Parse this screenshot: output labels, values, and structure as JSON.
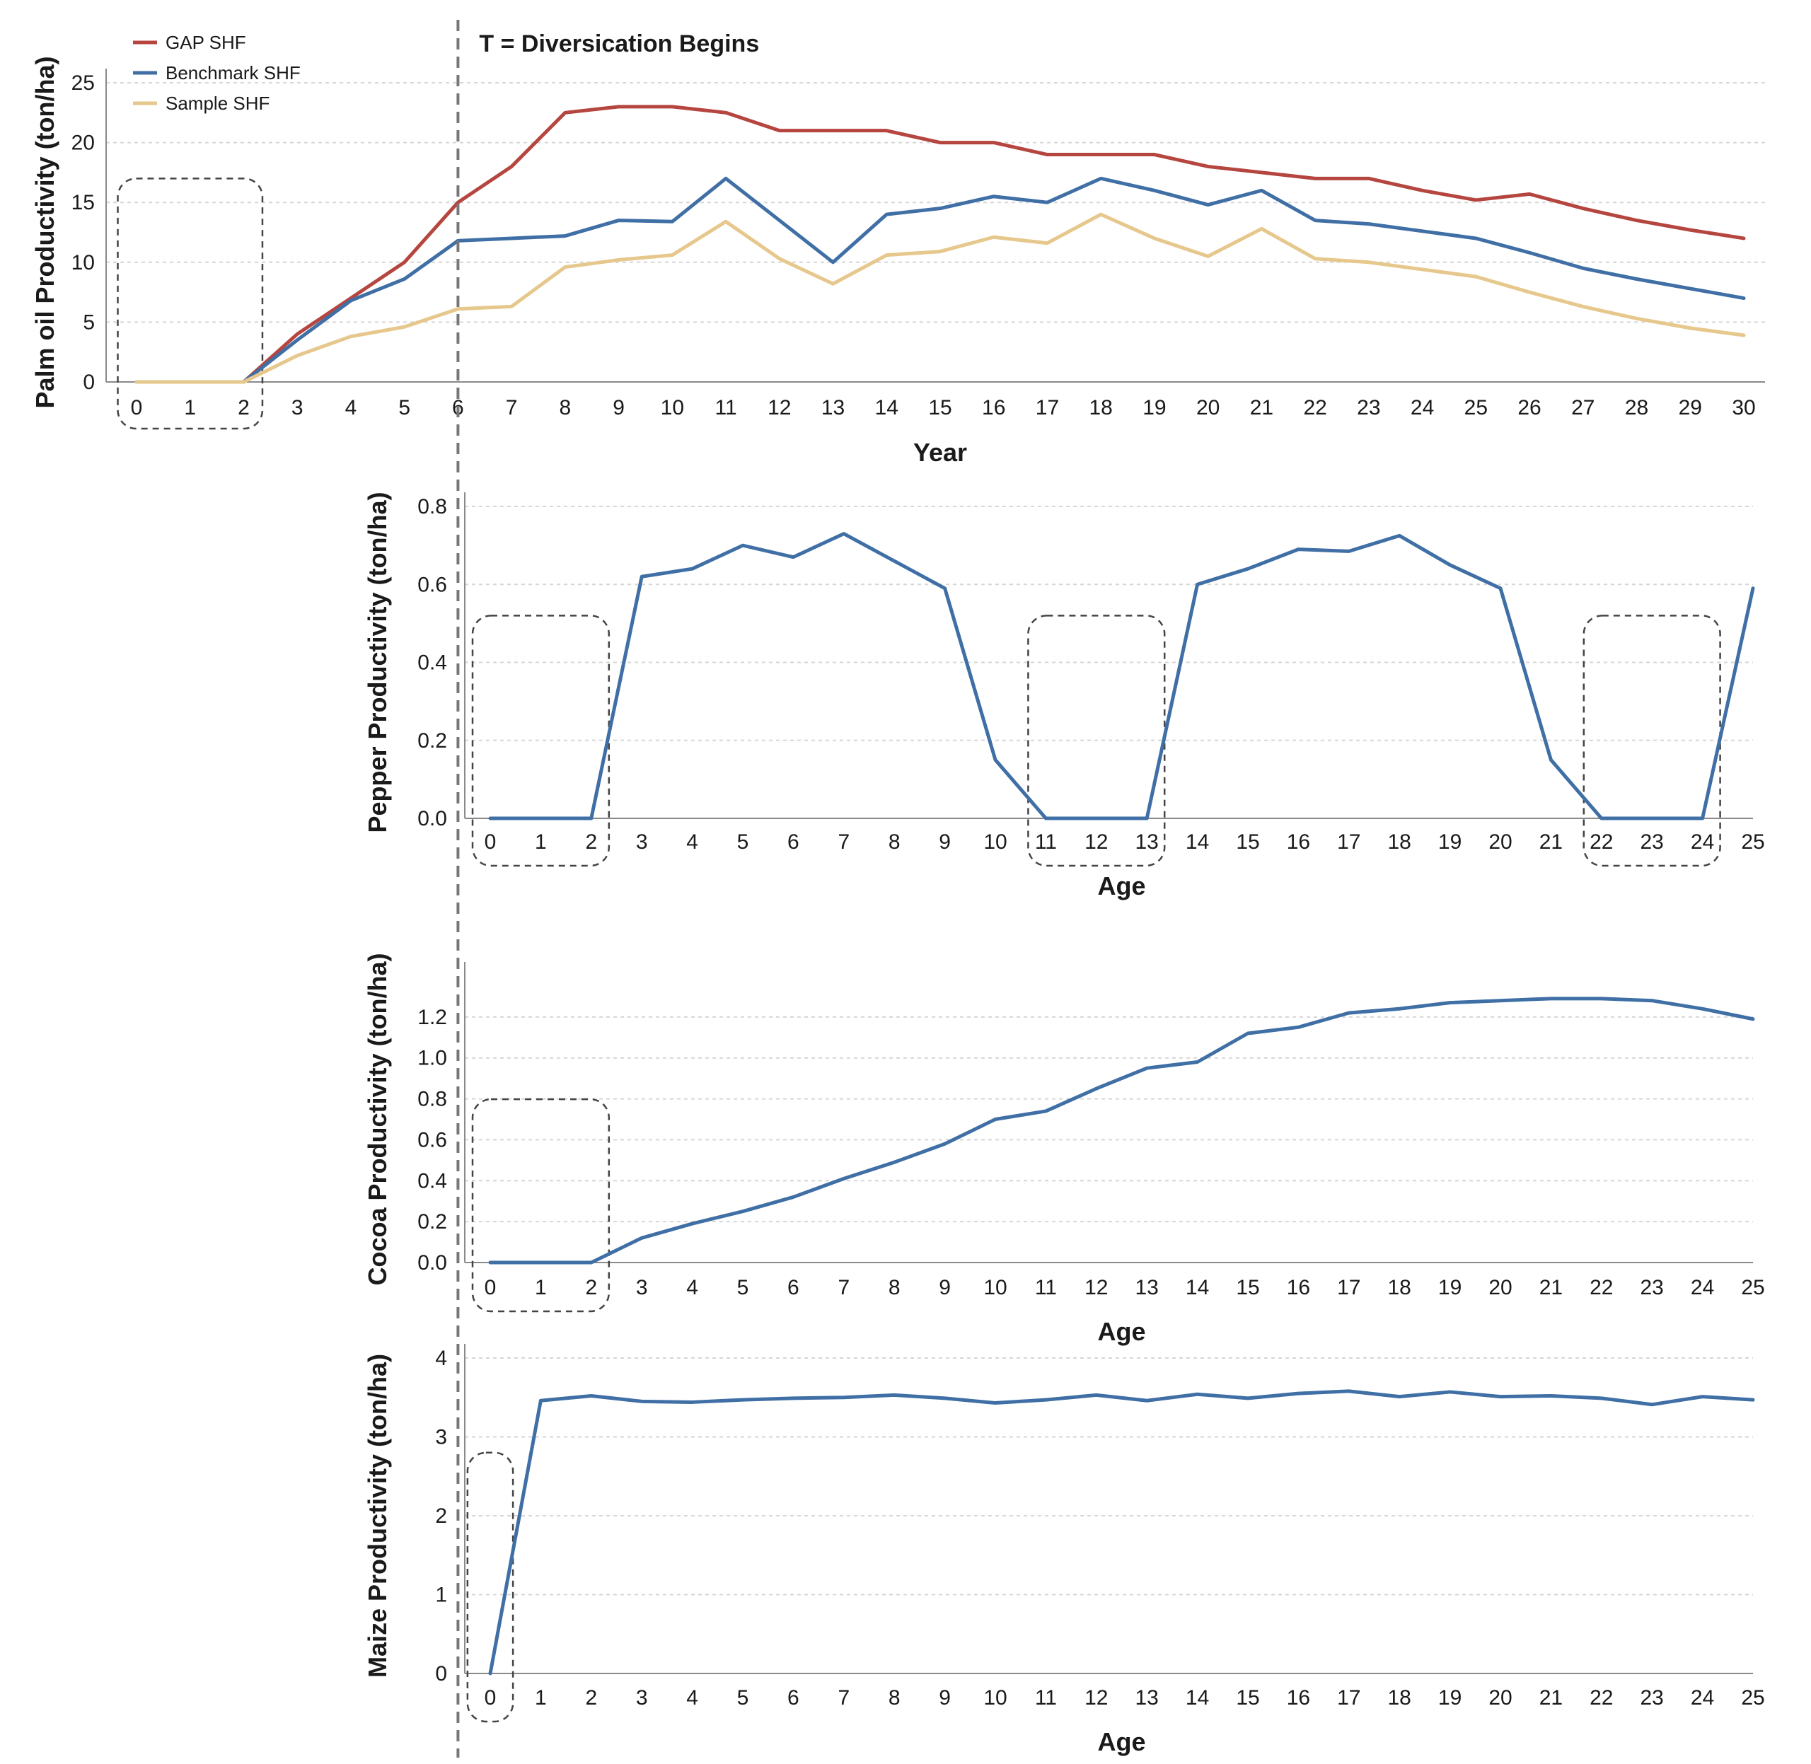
{
  "annotation": "T = Diversication Begins",
  "chart_data": [
    {
      "id": "palm",
      "type": "line",
      "title": "",
      "xlabel": "Year",
      "ylabel": "Palm oil Productivity (ton/ha)",
      "x": [
        0,
        1,
        2,
        3,
        4,
        5,
        6,
        7,
        8,
        9,
        10,
        11,
        12,
        13,
        14,
        15,
        16,
        17,
        18,
        19,
        20,
        21,
        22,
        23,
        24,
        25,
        26,
        27,
        28,
        29,
        30
      ],
      "ylim": [
        0,
        25
      ],
      "yticks": [
        0,
        5,
        10,
        15,
        20,
        25
      ],
      "ytick_labels": [
        "0",
        "5",
        "10",
        "15",
        "20",
        "25"
      ],
      "grid": true,
      "legend_position": "top-left",
      "highlight_x": [
        0,
        2
      ],
      "series": [
        {
          "name": "GAP SHF",
          "color": "#b5453f",
          "values": [
            0,
            0,
            0,
            4,
            7,
            10,
            15,
            18,
            22.5,
            23,
            23,
            22.5,
            21,
            21,
            21,
            20,
            20,
            19,
            19,
            19,
            18,
            17.5,
            17,
            17,
            16,
            15.2,
            15.7,
            14.5,
            13.5,
            12.7,
            12
          ]
        },
        {
          "name": "Benchmark SHF",
          "color": "#3f6fa5",
          "values": [
            0,
            0,
            0,
            3.5,
            6.8,
            8.6,
            11.8,
            12,
            12.2,
            13.5,
            13.4,
            17,
            13.5,
            10,
            14,
            14.5,
            15.5,
            15,
            17,
            16,
            14.8,
            16,
            13.5,
            13.2,
            12.6,
            12,
            10.8,
            9.5,
            8.6,
            7.8,
            7
          ]
        },
        {
          "name": "Sample SHF",
          "color": "#e6c78c",
          "values": [
            0,
            0,
            0,
            2.2,
            3.8,
            4.6,
            6.1,
            6.3,
            9.6,
            10.2,
            10.6,
            13.4,
            10.3,
            8.2,
            10.6,
            10.9,
            12.1,
            11.6,
            14,
            12,
            10.5,
            12.8,
            10.3,
            10,
            9.4,
            8.8,
            7.5,
            6.3,
            5.3,
            4.5,
            3.9
          ]
        }
      ]
    },
    {
      "id": "pepper",
      "type": "line",
      "title": "",
      "xlabel": "Age",
      "ylabel": "Pepper Productivity (ton/ha)",
      "x": [
        0,
        1,
        2,
        3,
        4,
        5,
        6,
        7,
        8,
        9,
        10,
        11,
        12,
        13,
        14,
        15,
        16,
        17,
        18,
        19,
        20,
        21,
        22,
        23,
        24,
        25
      ],
      "ylim": [
        0,
        0.8
      ],
      "yticks": [
        0,
        0.2,
        0.4,
        0.6,
        0.8
      ],
      "ytick_labels": [
        "0.0",
        "0.2",
        "0.4",
        "0.6",
        "0.8"
      ],
      "grid": true,
      "highlight_x": [
        [
          0,
          2
        ],
        [
          11,
          13
        ],
        [
          22,
          24
        ]
      ],
      "series": [
        {
          "color": "#3f6fa5",
          "values": [
            0,
            0,
            0,
            0.62,
            0.64,
            0.7,
            0.67,
            0.73,
            0.66,
            0.59,
            0.15,
            0,
            0,
            0,
            0.6,
            0.64,
            0.69,
            0.685,
            0.725,
            0.65,
            0.59,
            0.15,
            0,
            0,
            0,
            0.59
          ]
        }
      ]
    },
    {
      "id": "cocoa",
      "type": "line",
      "title": "",
      "xlabel": "Age",
      "ylabel": "Cocoa Productivity (ton/ha)",
      "x": [
        0,
        1,
        2,
        3,
        4,
        5,
        6,
        7,
        8,
        9,
        10,
        11,
        12,
        13,
        14,
        15,
        16,
        17,
        18,
        19,
        20,
        21,
        22,
        23,
        24,
        25
      ],
      "ylim": [
        0,
        1.4
      ],
      "yticks": [
        0,
        0.2,
        0.4,
        0.6,
        0.8,
        1.0,
        1.2
      ],
      "ytick_labels": [
        "0.0",
        "0.2",
        "0.4",
        "0.6",
        "0.8",
        "1.0",
        "1.2"
      ],
      "grid": true,
      "highlight_x": [
        0,
        2
      ],
      "series": [
        {
          "color": "#3f6fa5",
          "values": [
            0,
            0,
            0,
            0.12,
            0.19,
            0.25,
            0.32,
            0.41,
            0.49,
            0.58,
            0.7,
            0.74,
            0.85,
            0.95,
            0.98,
            1.12,
            1.15,
            1.22,
            1.24,
            1.27,
            1.28,
            1.29,
            1.29,
            1.28,
            1.24,
            1.19
          ]
        }
      ]
    },
    {
      "id": "maize",
      "type": "line",
      "title": "",
      "xlabel": "Age",
      "ylabel": "Maize Productivity (ton/ha)",
      "x": [
        0,
        1,
        2,
        3,
        4,
        5,
        6,
        7,
        8,
        9,
        10,
        11,
        12,
        13,
        14,
        15,
        16,
        17,
        18,
        19,
        20,
        21,
        22,
        23,
        24,
        25
      ],
      "ylim": [
        0,
        4
      ],
      "yticks": [
        0,
        1,
        2,
        3,
        4
      ],
      "ytick_labels": [
        "0",
        "1",
        "2",
        "3",
        "4"
      ],
      "grid": true,
      "highlight_x": [
        0,
        0
      ],
      "series": [
        {
          "color": "#3f6fa5",
          "values": [
            0,
            3.46,
            3.52,
            3.45,
            3.44,
            3.47,
            3.49,
            3.5,
            3.53,
            3.49,
            3.43,
            3.47,
            3.53,
            3.46,
            3.54,
            3.49,
            3.55,
            3.58,
            3.51,
            3.57,
            3.51,
            3.52,
            3.49,
            3.41,
            3.51,
            3.47
          ]
        }
      ]
    }
  ]
}
